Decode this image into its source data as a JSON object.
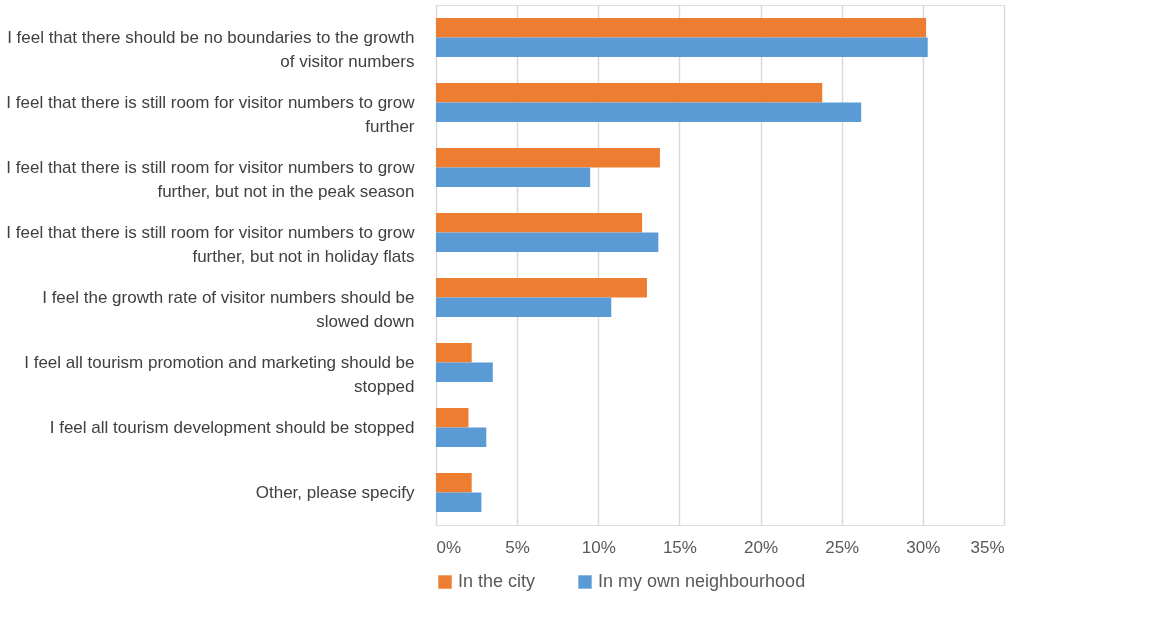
{
  "chart_data": {
    "type": "bar",
    "orientation": "horizontal",
    "categories": [
      "I feel that there should be no boundaries to the growth\nof visitor numbers",
      "I feel that there is still room for visitor numbers to grow\nfurther",
      "I feel that there is still room for visitor numbers to grow\nfurther, but not in the peak season",
      "I feel that there is still room for visitor numbers to grow\nfurther, but not in holiday flats",
      "I feel the growth rate of visitor numbers should be\nslowed down",
      "I feel all tourism promotion and marketing should be\nstopped",
      "I feel all tourism development should be stopped",
      "Other, please specify"
    ],
    "series": [
      {
        "name": "In the city",
        "color": "#ed7d31",
        "values": [
          30.2,
          23.8,
          13.8,
          12.7,
          13.0,
          2.2,
          2.0,
          2.2
        ]
      },
      {
        "name": "In my own neighbourhood",
        "color": "#5b9bd5",
        "values": [
          30.3,
          26.2,
          9.5,
          13.7,
          10.8,
          3.5,
          3.1,
          2.8
        ]
      }
    ],
    "xlim": [
      0,
      35
    ],
    "xticks": [
      {
        "value": 0,
        "label": "0%"
      },
      {
        "value": 5,
        "label": "5%"
      },
      {
        "value": 10,
        "label": "10%"
      },
      {
        "value": 15,
        "label": "15%"
      },
      {
        "value": 20,
        "label": "20%"
      },
      {
        "value": 25,
        "label": "25%"
      },
      {
        "value": 30,
        "label": "30%"
      },
      {
        "value": 35,
        "label": "35%"
      }
    ],
    "grid": "x",
    "legend": "bottom"
  }
}
